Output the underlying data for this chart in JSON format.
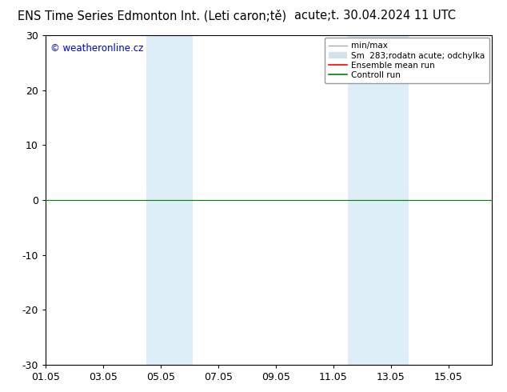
{
  "title_left": "ENS Time Series Edmonton Int. (Leti caron;tě)",
  "title_right": "acute;t. 30.04.2024 11 UTC",
  "watermark": "© weatheronline.cz",
  "watermark_color": "#0000cc",
  "ylim": [
    -30,
    30
  ],
  "yticks": [
    -30,
    -20,
    -10,
    0,
    10,
    20,
    30
  ],
  "xlim_start": 0,
  "xlim_end": 15.5,
  "xtick_positions": [
    0,
    2,
    4,
    6,
    8,
    10,
    12,
    14
  ],
  "xtick_labels": [
    "01.05",
    "03.05",
    "05.05",
    "07.05",
    "09.05",
    "11.05",
    "13.05",
    "15.05"
  ],
  "blue_bands": [
    {
      "x_start": 3.5,
      "x_end": 5.1
    },
    {
      "x_start": 10.5,
      "x_end": 12.6
    }
  ],
  "blue_band_color": "#ddeef8",
  "control_run_color": "#008000",
  "ensemble_mean_color": "#ff0000",
  "background_color": "#ffffff",
  "title_fontsize": 10.5,
  "tick_fontsize": 9,
  "legend_fontsize": 7.5
}
